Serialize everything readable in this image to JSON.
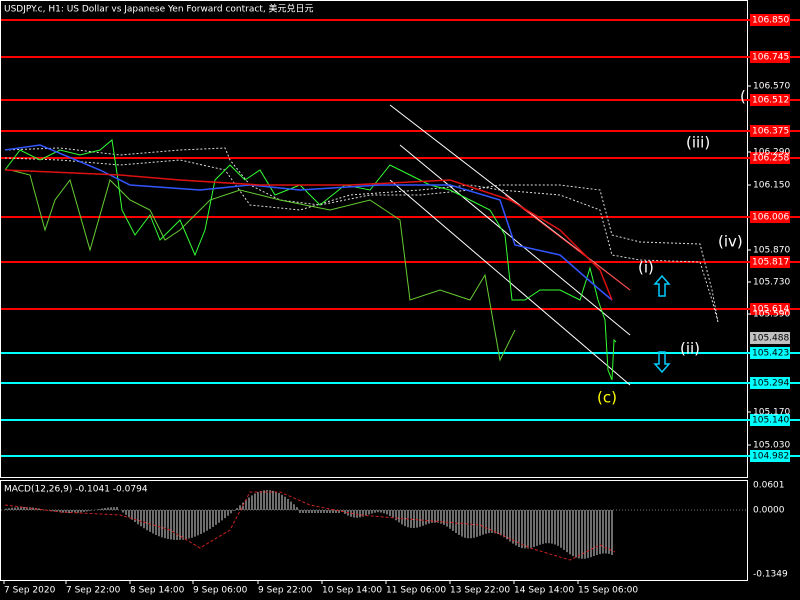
{
  "header": {
    "title": "USDJPY.c, H1:  US Dollar vs Japanese Yen Forward contract, 美元兑日元"
  },
  "price_levels": [
    {
      "label": "106.850",
      "color": "#ff0000"
    },
    {
      "label": "106.745",
      "color": "#ff0000"
    },
    {
      "label": "106.512",
      "color": "#ff0000"
    },
    {
      "label": "106.375",
      "color": "#ff0000"
    },
    {
      "label": "106.258",
      "color": "#ff0000"
    },
    {
      "label": "106.006",
      "color": "#ff0000"
    },
    {
      "label": "105.817",
      "color": "#ff0000"
    },
    {
      "label": "105.614",
      "color": "#ff0000"
    },
    {
      "label": "105.423",
      "color": "#00ffff"
    },
    {
      "label": "105.294",
      "color": "#00ffff"
    },
    {
      "label": "105.140",
      "color": "#00ffff"
    },
    {
      "label": "104.982",
      "color": "#00ffff"
    }
  ],
  "price_axis": [
    "106.570",
    "106.290",
    "106.150",
    "105.870",
    "105.730",
    "105.590",
    "105.170",
    "105.030"
  ],
  "current_price": "105.488",
  "time_axis": [
    "7 Sep 2020",
    "7 Sep 22:00",
    "8 Sep 14:00",
    "9 Sep 06:00",
    "9 Sep 22:00",
    "10 Sep 14:00",
    "11 Sep 06:00",
    "13 Sep 22:00",
    "14 Sep 14:00",
    "15 Sep 06:00"
  ],
  "annotations": [
    {
      "label": "(",
      "color": "#ffffff"
    },
    {
      "label": "(iii)",
      "color": "#ffffff"
    },
    {
      "label": "(iv)",
      "color": "#ffffff"
    },
    {
      "label": "(i)",
      "color": "#ffffff"
    },
    {
      "label": "(ii)",
      "color": "#ffffff"
    },
    {
      "label": "(c)",
      "color": "#ffff00"
    }
  ],
  "macd": {
    "label": "MACD(12,26,9) -0.1041 -0.0794",
    "axis": [
      "0.0601",
      "0.0000",
      "-0.1349"
    ]
  }
}
